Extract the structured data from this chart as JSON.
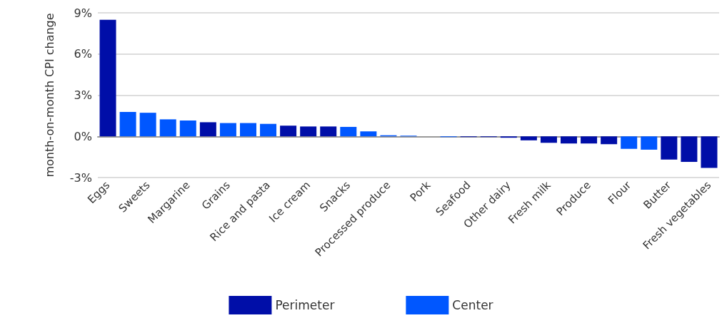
{
  "chart_data": {
    "type": "bar",
    "ylabel": "month-on-month CPI change",
    "categories": [
      "Eggs",
      null,
      "Sweets",
      null,
      "Margarine",
      null,
      "Grains",
      null,
      "Rice and pasta",
      null,
      "Ice cream",
      null,
      "Snacks",
      null,
      "Processed produce",
      null,
      "Pork",
      null,
      "Seafood",
      null,
      "Other dairy",
      null,
      "Fresh milk",
      null,
      "Produce",
      null,
      "Flour",
      null,
      "Butter",
      null,
      "Fresh vegetables"
    ],
    "series": [
      {
        "name": "Perimeter",
        "color": "#000ea8",
        "values": [
          8.5,
          null,
          null,
          null,
          null,
          1.03,
          null,
          null,
          null,
          0.78,
          0.72,
          0.72,
          null,
          null,
          null,
          null,
          0,
          null,
          -0.05,
          -0.05,
          -0.1,
          -0.29,
          -0.47,
          -0.52,
          -0.52,
          -0.57,
          null,
          null,
          -1.69,
          -1.86,
          -2.3
        ]
      },
      {
        "name": "Center",
        "color": "#0057ff",
        "values": [
          null,
          1.78,
          1.72,
          1.24,
          1.16,
          null,
          0.97,
          0.97,
          0.91,
          null,
          null,
          null,
          0.69,
          0.36,
          0.08,
          0.05,
          null,
          -0.05,
          null,
          null,
          null,
          null,
          null,
          null,
          null,
          null,
          -0.91,
          -0.97,
          null,
          null,
          null
        ]
      }
    ],
    "ylim": [
      -3,
      9
    ],
    "yticks": [
      {
        "value": -3,
        "label": "-3%"
      },
      {
        "value": 0,
        "label": "0%"
      },
      {
        "value": 3,
        "label": "3%"
      },
      {
        "value": 6,
        "label": "6%"
      },
      {
        "value": 9,
        "label": "9%"
      }
    ],
    "grid": "y",
    "legend": "bottom"
  }
}
